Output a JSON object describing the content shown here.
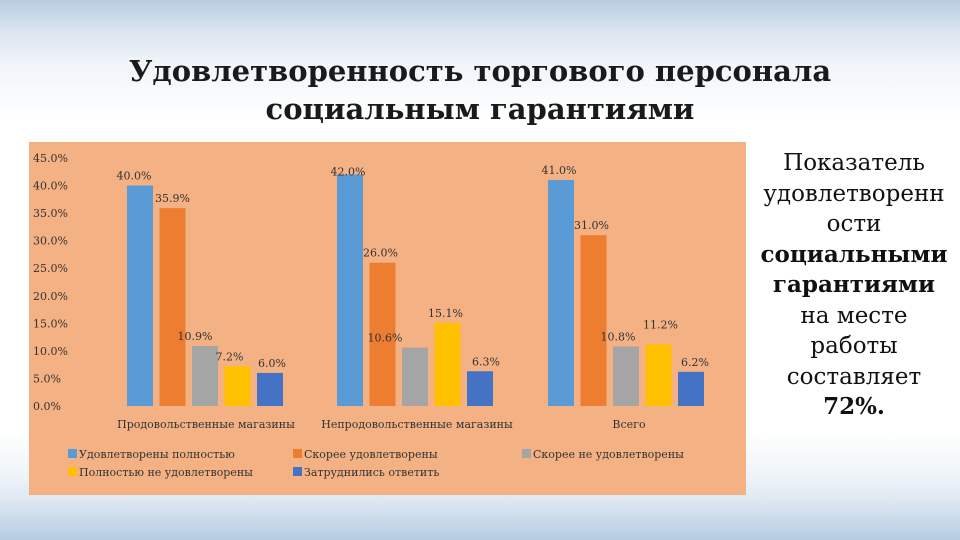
{
  "title": {
    "line1": "Удовлетворенность торгового персонала",
    "line2": "социальным гарантиями"
  },
  "side_note": {
    "line1": "Показатель",
    "line2": "удовлетворенн",
    "line3": "ости",
    "line4": "социальными",
    "line5": "гарантиями",
    "line6": "на месте",
    "line7": "работы",
    "line8": "составляет",
    "line9": "72%."
  },
  "colors": {
    "chart_background": "#f4b183",
    "series": [
      "#5b9bd5",
      "#ed7d31",
      "#a5a5a5",
      "#ffc000",
      "#4472c4"
    ]
  },
  "chart_data": {
    "type": "bar",
    "categories": [
      "Продовольственные магазины",
      "Непродовольственные магазины",
      "Всего"
    ],
    "series": [
      {
        "name": "Удовлетворены полностью",
        "values": [
          40.0,
          42.0,
          41.0
        ],
        "labels": [
          "40.0%",
          "42.0%",
          "41.0%"
        ]
      },
      {
        "name": "Скорее удовлетворены",
        "values": [
          35.9,
          26.0,
          31.0
        ],
        "labels": [
          "35.9%",
          "26.0%",
          "31.0%"
        ]
      },
      {
        "name": "Скорее не удовлетворены",
        "values": [
          10.9,
          10.6,
          10.8
        ],
        "labels": [
          "10.9%",
          "10.6%",
          "10.8%"
        ]
      },
      {
        "name": "Полностью не удовлетворены",
        "values": [
          7.2,
          15.1,
          11.2
        ],
        "labels": [
          "7.2%",
          "15.1%",
          "11.2%"
        ]
      },
      {
        "name": "Затруднились ответить",
        "values": [
          6.0,
          6.3,
          6.2
        ],
        "labels": [
          "6.0%",
          "6.3%",
          "6.2%"
        ]
      }
    ],
    "y_ticks": [
      "0.0%",
      "5.0%",
      "10.0%",
      "15.0%",
      "20.0%",
      "25.0%",
      "30.0%",
      "35.0%",
      "40.0%",
      "45.0%"
    ],
    "ylim": [
      0,
      45
    ],
    "grid": false,
    "legend_position": "bottom"
  }
}
